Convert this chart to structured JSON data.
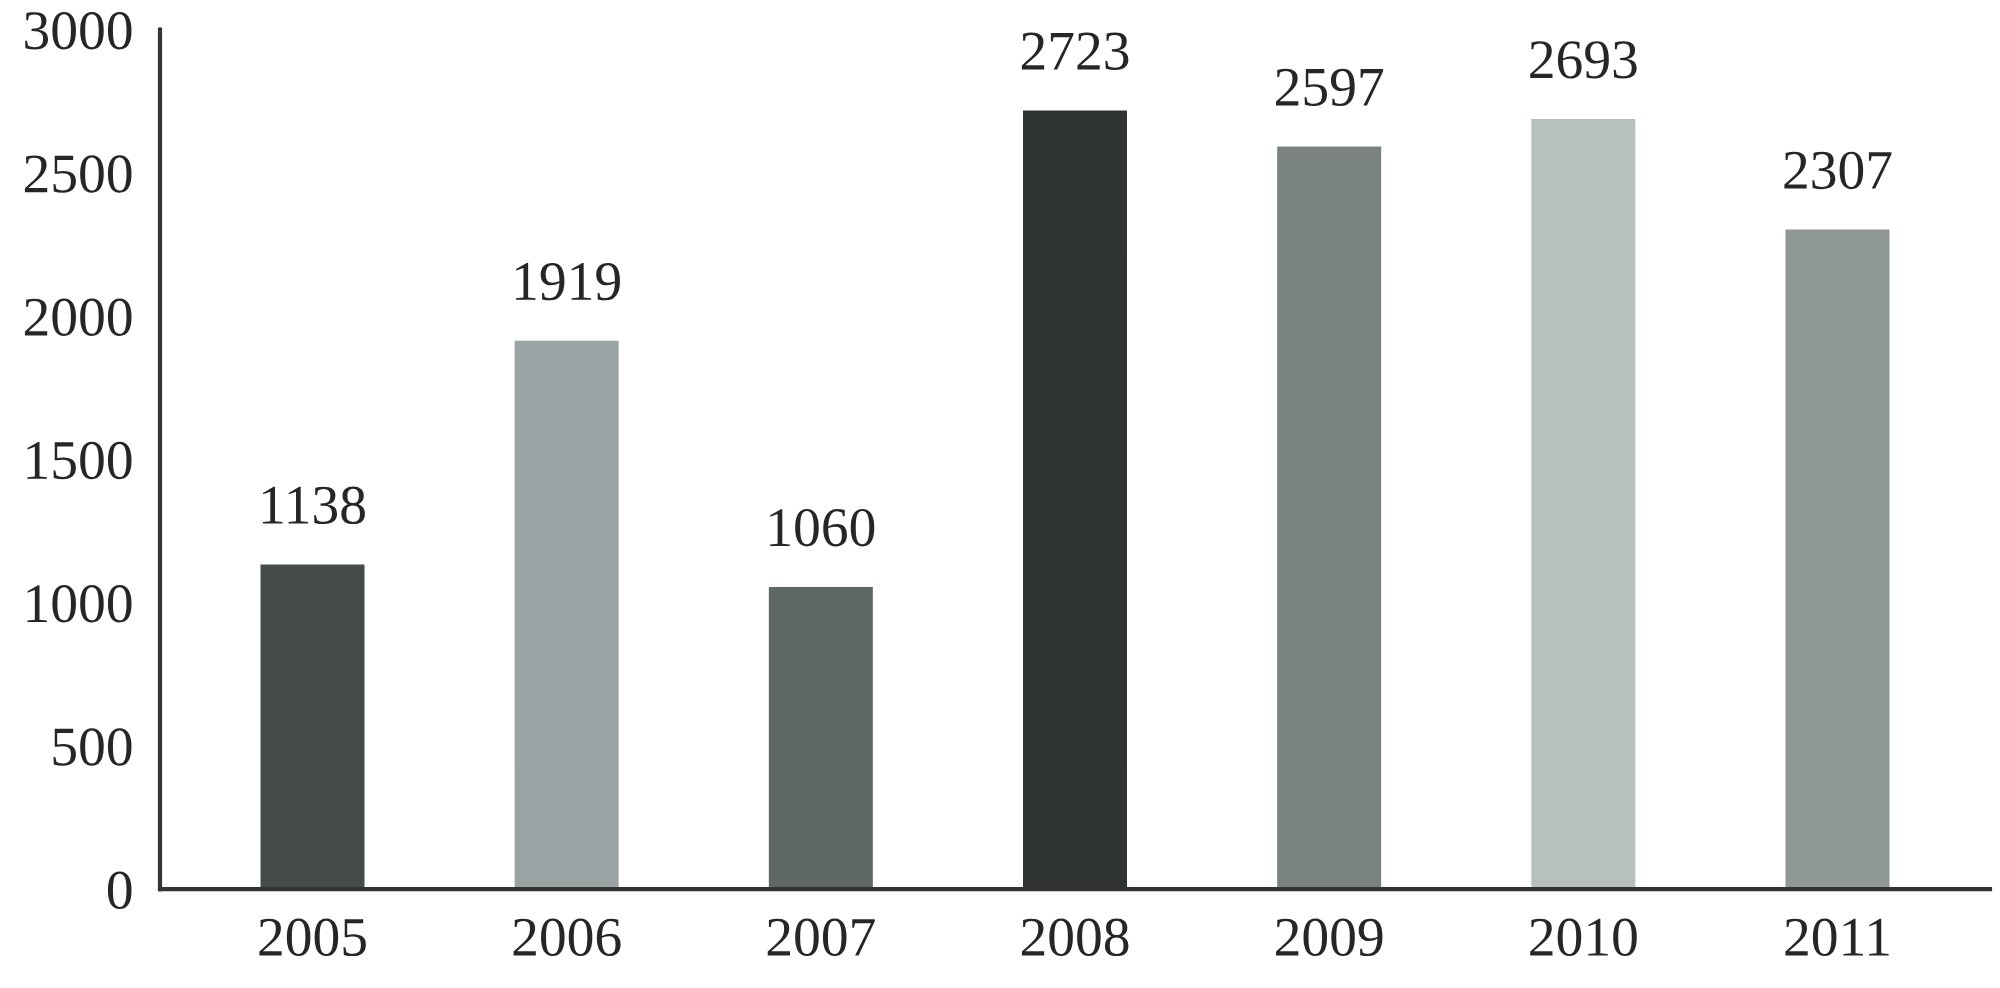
{
  "chart_data": {
    "type": "bar",
    "categories": [
      "2005",
      "2006",
      "2007",
      "2008",
      "2009",
      "2010",
      "2011"
    ],
    "values": [
      1138,
      1919,
      1060,
      2723,
      2597,
      2693,
      2307
    ],
    "colors": [
      "#454a4a",
      "#99a3a3",
      "#5f6666",
      "#2e3232",
      "#7a8282",
      "#b8c0bd",
      "#8f9896"
    ],
    "ylim": [
      0,
      3000
    ],
    "yticks": [
      0,
      500,
      1000,
      1500,
      2000,
      2500,
      3000
    ],
    "grid": false,
    "data_labels": true
  }
}
